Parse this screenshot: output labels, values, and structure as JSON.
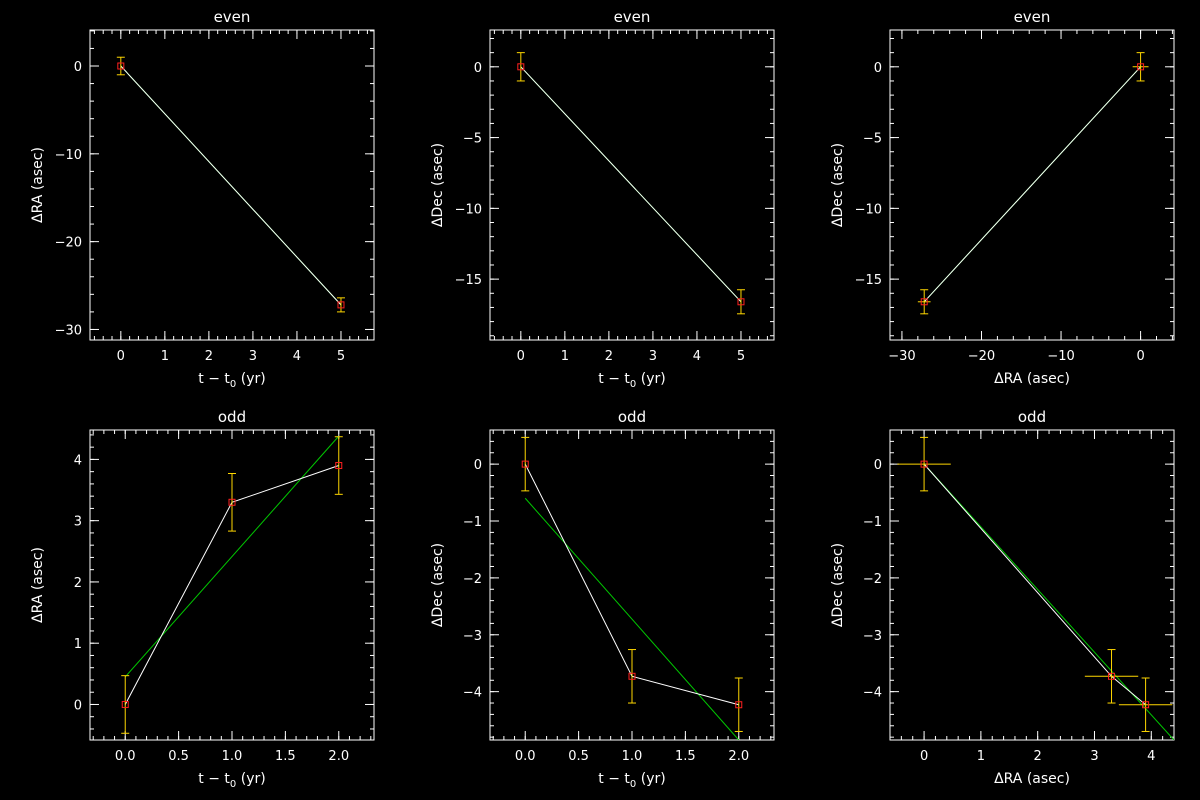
{
  "colors": {
    "background": "#000000",
    "axes": "#ffffff",
    "data_line": "#ffffff",
    "fit_line": "#00c800",
    "error_bars": "#ffd700",
    "markers": "#ff2020"
  },
  "chart_data": [
    {
      "type": "line",
      "title": "even",
      "xlabel": "t − t",
      "xlabel_sub": "0",
      "xlabel_suffix": " (yr)",
      "ylabel": "ΔRA (asec)",
      "xlim": [
        -0.7,
        5.75
      ],
      "ylim": [
        -31.2,
        4.1
      ],
      "xticks": [
        0,
        1,
        2,
        3,
        4,
        5
      ],
      "xtick_labels": [
        "0",
        "1",
        "2",
        "3",
        "4",
        "5"
      ],
      "yticks": [
        0,
        -10,
        -20,
        -30
      ],
      "ytick_labels": [
        "0",
        "−10",
        "−20",
        "−30"
      ],
      "points": [
        {
          "x": 0,
          "y": 0,
          "xerr": 0,
          "yerr": 1.0
        },
        {
          "x": 5,
          "y": -27.2,
          "xerr": 0,
          "yerr": 0.8
        }
      ],
      "fit": {
        "x": [
          0,
          5
        ],
        "y": [
          0,
          -27.2
        ]
      }
    },
    {
      "type": "line",
      "title": "even",
      "xlabel": "t − t",
      "xlabel_sub": "0",
      "xlabel_suffix": " (yr)",
      "ylabel": "ΔDec (asec)",
      "xlim": [
        -0.7,
        5.75
      ],
      "ylim": [
        -19.3,
        2.6
      ],
      "xticks": [
        0,
        1,
        2,
        3,
        4,
        5
      ],
      "xtick_labels": [
        "0",
        "1",
        "2",
        "3",
        "4",
        "5"
      ],
      "yticks": [
        0,
        -5,
        -10,
        -15
      ],
      "ytick_labels": [
        "0",
        "−5",
        "−10",
        "−15"
      ],
      "points": [
        {
          "x": 0,
          "y": 0,
          "xerr": 0,
          "yerr": 1.0
        },
        {
          "x": 5,
          "y": -16.6,
          "xerr": 0,
          "yerr": 0.85
        }
      ],
      "fit": {
        "x": [
          0,
          5
        ],
        "y": [
          0,
          -16.6
        ]
      }
    },
    {
      "type": "line",
      "title": "even",
      "xlabel": "ΔRA (asec)",
      "ylabel": "ΔDec (asec)",
      "xlim": [
        -31.5,
        4.2
      ],
      "ylim": [
        -19.3,
        2.6
      ],
      "xticks": [
        -30,
        -20,
        -10,
        0
      ],
      "xtick_labels": [
        "−30",
        "−20",
        "−10",
        "0"
      ],
      "yticks": [
        0,
        -5,
        -10,
        -15
      ],
      "ytick_labels": [
        "0",
        "−5",
        "−10",
        "−15"
      ],
      "points": [
        {
          "x": 0,
          "y": 0,
          "xerr": 1.0,
          "yerr": 1.0
        },
        {
          "x": -27.2,
          "y": -16.6,
          "xerr": 0.8,
          "yerr": 0.85
        }
      ],
      "fit": {
        "x": [
          0,
          -27.2
        ],
        "y": [
          0,
          -16.6
        ]
      }
    },
    {
      "type": "line",
      "title": "odd",
      "xlabel": "t − t",
      "xlabel_sub": "0",
      "xlabel_suffix": " (yr)",
      "ylabel": "ΔRA (asec)",
      "xlim": [
        -0.33,
        2.33
      ],
      "ylim": [
        -0.58,
        4.48
      ],
      "xticks": [
        0,
        0.5,
        1,
        1.5,
        2
      ],
      "xtick_labels": [
        "0.0",
        "0.5",
        "1.0",
        "1.5",
        "2.0"
      ],
      "yticks": [
        0,
        1,
        2,
        3,
        4
      ],
      "ytick_labels": [
        "0",
        "1",
        "2",
        "3",
        "4"
      ],
      "points": [
        {
          "x": 0,
          "y": 0,
          "xerr": 0,
          "yerr": 0.47
        },
        {
          "x": 1,
          "y": 3.3,
          "xerr": 0,
          "yerr": 0.47
        },
        {
          "x": 2,
          "y": 3.9,
          "xerr": 0,
          "yerr": 0.47
        }
      ],
      "fit": {
        "x": [
          0,
          2
        ],
        "y": [
          0.45,
          4.38
        ]
      }
    },
    {
      "type": "line",
      "title": "odd",
      "xlabel": "t − t",
      "xlabel_sub": "0",
      "xlabel_suffix": " (yr)",
      "ylabel": "ΔDec (asec)",
      "xlim": [
        -0.33,
        2.33
      ],
      "ylim": [
        -4.85,
        0.6
      ],
      "xticks": [
        0,
        0.5,
        1,
        1.5,
        2
      ],
      "xtick_labels": [
        "0.0",
        "0.5",
        "1.0",
        "1.5",
        "2.0"
      ],
      "yticks": [
        0,
        -1,
        -2,
        -3,
        -4
      ],
      "ytick_labels": [
        "0",
        "−1",
        "−2",
        "−3",
        "−4"
      ],
      "points": [
        {
          "x": 0,
          "y": 0,
          "xerr": 0,
          "yerr": 0.47
        },
        {
          "x": 1,
          "y": -3.73,
          "xerr": 0,
          "yerr": 0.47
        },
        {
          "x": 2,
          "y": -4.23,
          "xerr": 0,
          "yerr": 0.47
        }
      ],
      "fit": {
        "x": [
          0,
          2
        ],
        "y": [
          -0.6,
          -4.85
        ]
      }
    },
    {
      "type": "line",
      "title": "odd",
      "xlabel": "ΔRA (asec)",
      "ylabel": "ΔDec (asec)",
      "xlim": [
        -0.6,
        4.4
      ],
      "ylim": [
        -4.85,
        0.6
      ],
      "xticks": [
        0,
        1,
        2,
        3,
        4
      ],
      "xtick_labels": [
        "0",
        "1",
        "2",
        "3",
        "4"
      ],
      "yticks": [
        0,
        -1,
        -2,
        -3,
        -4
      ],
      "ytick_labels": [
        "0",
        "−1",
        "−2",
        "−3",
        "−4"
      ],
      "points": [
        {
          "x": 0,
          "y": 0,
          "xerr": 0.47,
          "yerr": 0.47
        },
        {
          "x": 3.3,
          "y": -3.73,
          "xerr": 0.47,
          "yerr": 0.47
        },
        {
          "x": 3.9,
          "y": -4.23,
          "xerr": 0.47,
          "yerr": 0.47
        }
      ],
      "fit": {
        "x": [
          0,
          4.4
        ],
        "y": [
          0,
          -4.85
        ]
      }
    }
  ]
}
